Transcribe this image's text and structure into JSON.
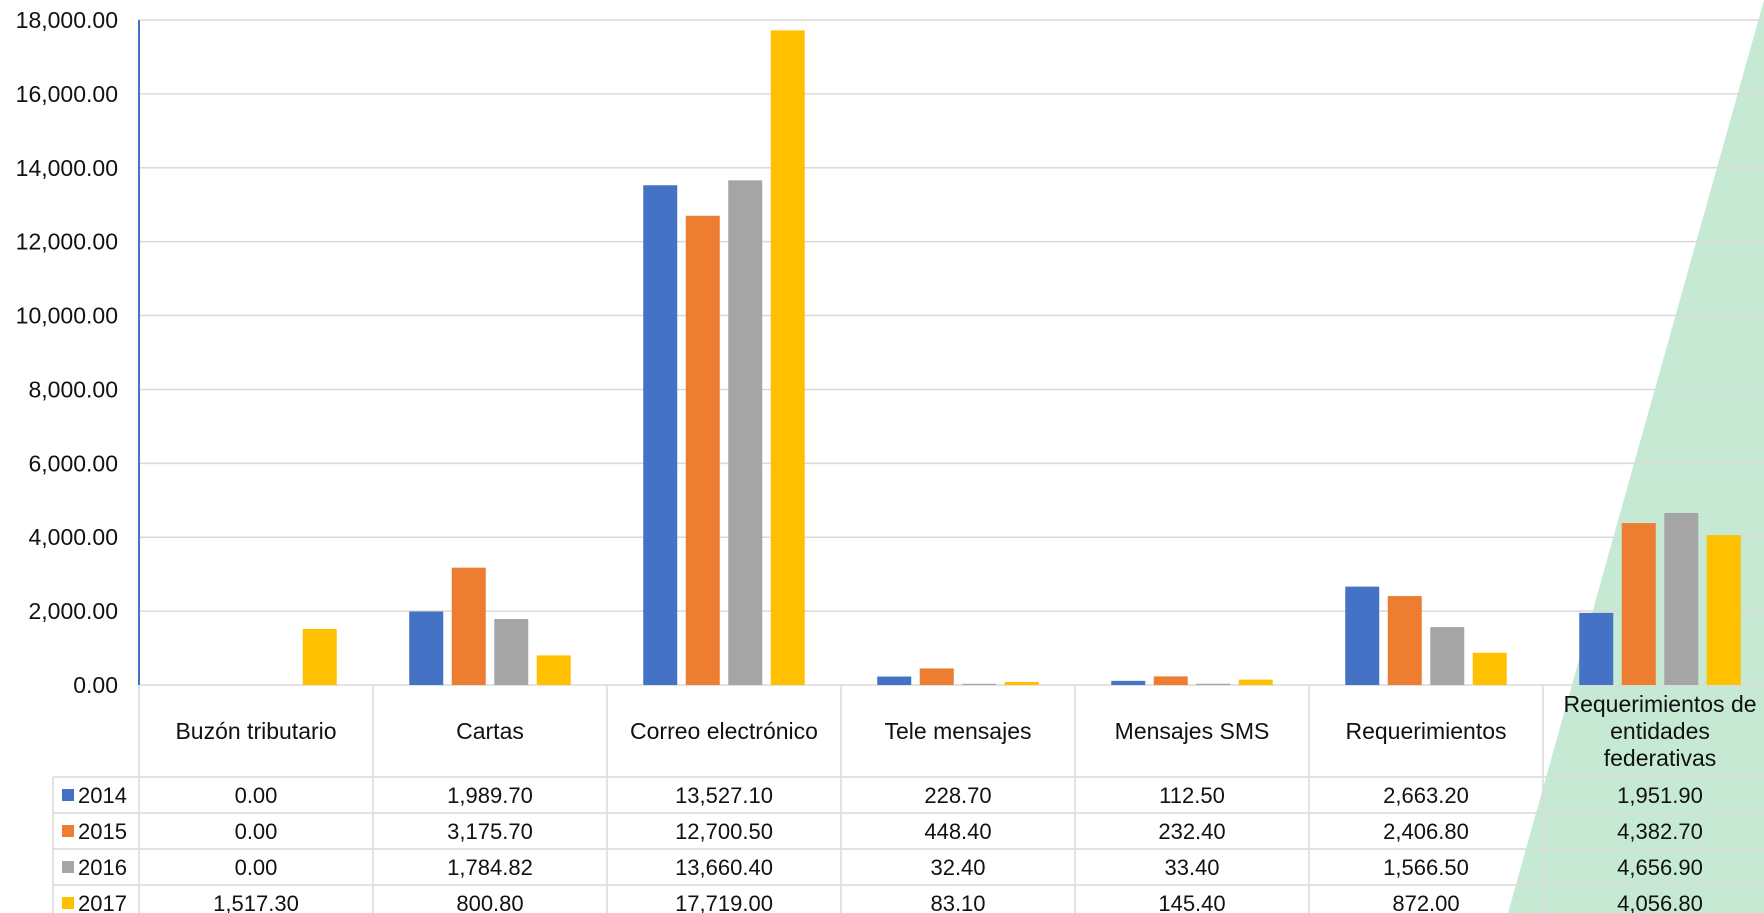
{
  "chart_data": {
    "type": "bar",
    "categories": [
      "Buzón tributario",
      "Cartas",
      "Correo electrónico",
      "Tele mensajes",
      "Mensajes SMS",
      "Requerimientos",
      "Requerimientos de entidades federativas"
    ],
    "category_lines": [
      [
        "Buzón tributario"
      ],
      [
        "Cartas"
      ],
      [
        "Correo electrónico"
      ],
      [
        "Tele mensajes"
      ],
      [
        "Mensajes SMS"
      ],
      [
        "Requerimientos"
      ],
      [
        "Requerimientos de",
        "entidades",
        "federativas"
      ]
    ],
    "series": [
      {
        "name": "2014",
        "color": "#4472C4",
        "values": [
          0.0,
          1989.7,
          13527.1,
          228.7,
          112.5,
          2663.2,
          1951.9
        ],
        "labels": [
          "0.00",
          "1,989.70",
          "13,527.10",
          "228.70",
          "112.50",
          "2,663.20",
          "1,951.90"
        ]
      },
      {
        "name": "2015",
        "color": "#ED7D31",
        "values": [
          0.0,
          3175.7,
          12700.5,
          448.4,
          232.4,
          2406.8,
          4382.7
        ],
        "labels": [
          "0.00",
          "3,175.70",
          "12,700.50",
          "448.40",
          "232.40",
          "2,406.80",
          "4,382.70"
        ]
      },
      {
        "name": "2016",
        "color": "#A5A5A5",
        "values": [
          0.0,
          1784.82,
          13660.4,
          32.4,
          33.4,
          1566.5,
          4656.9
        ],
        "labels": [
          "0.00",
          "1,784.82",
          "13,660.40",
          "32.40",
          "33.40",
          "1,566.50",
          "4,656.90"
        ]
      },
      {
        "name": "2017",
        "color": "#FFC000",
        "values": [
          1517.3,
          800.8,
          17719.0,
          83.1,
          145.4,
          872.0,
          4056.8
        ],
        "labels": [
          "1,517.30",
          "800.80",
          "17,719.00",
          "83.10",
          "145.40",
          "872.00",
          "4,056.80"
        ]
      }
    ],
    "ylim": [
      0,
      18000
    ],
    "y_ticks": [
      0,
      2000,
      4000,
      6000,
      8000,
      10000,
      12000,
      14000,
      16000,
      18000
    ],
    "y_tick_labels": [
      "0.00",
      "2,000.00",
      "4,000.00",
      "6,000.00",
      "8,000.00",
      "10,000.00",
      "12,000.00",
      "14,000.00",
      "16,000.00",
      "18,000.00"
    ],
    "grid": true,
    "data_table": true,
    "legend": "in data table"
  },
  "colors": {
    "grid": "#D9D9D9",
    "axis": "#4472C4",
    "bg_triangle": "#C6E9D4"
  }
}
